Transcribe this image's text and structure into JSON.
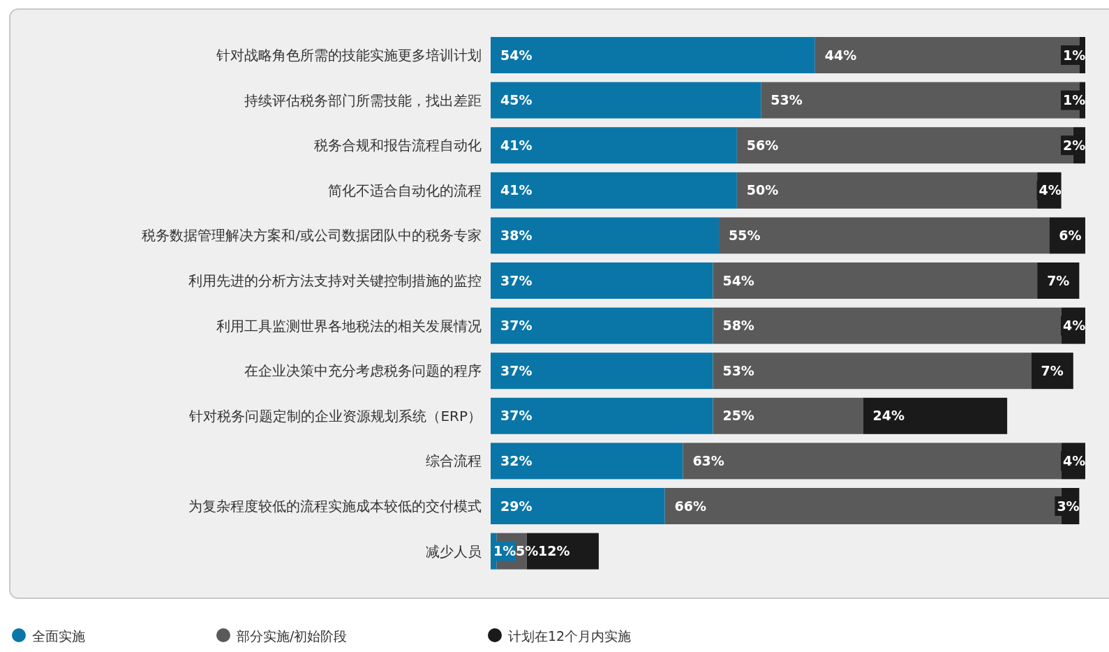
{
  "chart_data": {
    "type": "bar",
    "orientation": "horizontal",
    "stacked": true,
    "data_labels": true,
    "legend": "bottom",
    "categories": [
      "针对战略角色所需的技能实施更多培训计划",
      "持续评估税务部门所需技能，找出差距",
      "税务合规和报告流程自动化",
      "简化不适合自动化的流程",
      "税务数据管理解决方案和/或公司数据团队中的税务专家",
      "利用先进的分析方法支持对关键控制措施的监控",
      "利用工具监测世界各地税法的相关发展情况",
      "在企业决策中充分考虑税务问题的程序",
      "针对税务问题定制的企业资源规划系统（ERP）",
      "综合流程",
      "为复杂程度较低的流程实施成本较低的交付模式",
      "减少人员"
    ],
    "series": [
      {
        "name": "全面实施",
        "color": "#0a76a8",
        "values": [
          54,
          45,
          41,
          41,
          38,
          37,
          37,
          37,
          37,
          32,
          29,
          1
        ],
        "value_labels": [
          "54%",
          "45%",
          "41%",
          "41%",
          "38%",
          "37%",
          "37%",
          "37%",
          "37%",
          "32%",
          "29%",
          "1%"
        ]
      },
      {
        "name": "部分实施/初始阶段",
        "color": "#5a5a5a",
        "values": [
          44,
          53,
          56,
          50,
          55,
          54,
          58,
          53,
          25,
          63,
          66,
          5
        ],
        "value_labels": [
          "44%",
          "53%",
          "56%",
          "50%",
          "55%",
          "54%",
          "58%",
          "53%",
          "25%",
          "63%",
          "66%",
          "5%"
        ]
      },
      {
        "name": "计划在12个月内实施",
        "color": "#1a1a1b",
        "values": [
          1,
          1,
          2,
          4,
          6,
          7,
          4,
          7,
          24,
          4,
          3,
          12
        ],
        "value_labels": [
          "1%",
          "1%",
          "2%",
          "4%",
          "6%",
          "7%",
          "4%",
          "7%",
          "24%",
          "4%",
          "3%",
          "12%"
        ]
      }
    ]
  }
}
